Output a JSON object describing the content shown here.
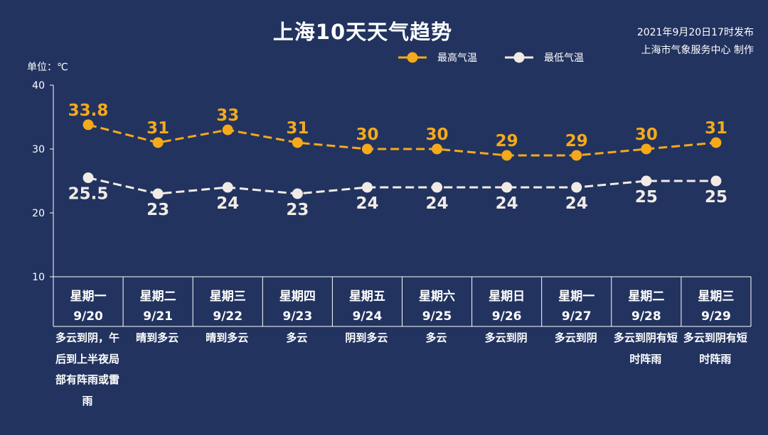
{
  "header": {
    "title": "上海10天天气趋势",
    "publish_line1": "2021年9月20日17时发布",
    "publish_line2": "上海市气象服务中心 制作",
    "unit": "单位：℃"
  },
  "colors": {
    "background": "#22335f",
    "high": "#f5a91b",
    "low": "#f1ebe6",
    "axis": "#ffffff"
  },
  "chart_data": {
    "type": "line",
    "x": [
      "9/20",
      "9/21",
      "9/22",
      "9/23",
      "9/24",
      "9/25",
      "9/26",
      "9/27",
      "9/28",
      "9/29"
    ],
    "weekdays": [
      "星期一",
      "星期二",
      "星期三",
      "星期四",
      "星期五",
      "星期六",
      "星期日",
      "星期一",
      "星期二",
      "星期三"
    ],
    "series": [
      {
        "name": "最高气温",
        "values": [
          33.8,
          31,
          33,
          31,
          30,
          30,
          29,
          29,
          30,
          31
        ],
        "labels": [
          "33.8",
          "31",
          "33",
          "31",
          "30",
          "30",
          "29",
          "29",
          "30",
          "31"
        ],
        "color": "#f5a91b"
      },
      {
        "name": "最低气温",
        "values": [
          25.5,
          23,
          24,
          23,
          24,
          24,
          24,
          24,
          25,
          25
        ],
        "labels": [
          "25.5",
          "23",
          "24",
          "23",
          "24",
          "24",
          "24",
          "24",
          "25",
          "25"
        ],
        "color": "#f1ebe6"
      }
    ],
    "weather": [
      "多云到阴，午后到上半夜局部有阵雨或雷雨",
      "晴到多云",
      "晴到多云",
      "多云",
      "阴到多云",
      "多云",
      "多云到阴",
      "多云到阴",
      "多云到阴有短时阵雨",
      "多云到阴有短时阵雨"
    ],
    "ylim": [
      10,
      40
    ],
    "yticks": [
      "10",
      "20",
      "30",
      "40"
    ],
    "legend": "top-center",
    "grid": false,
    "line_style": "dashed"
  }
}
